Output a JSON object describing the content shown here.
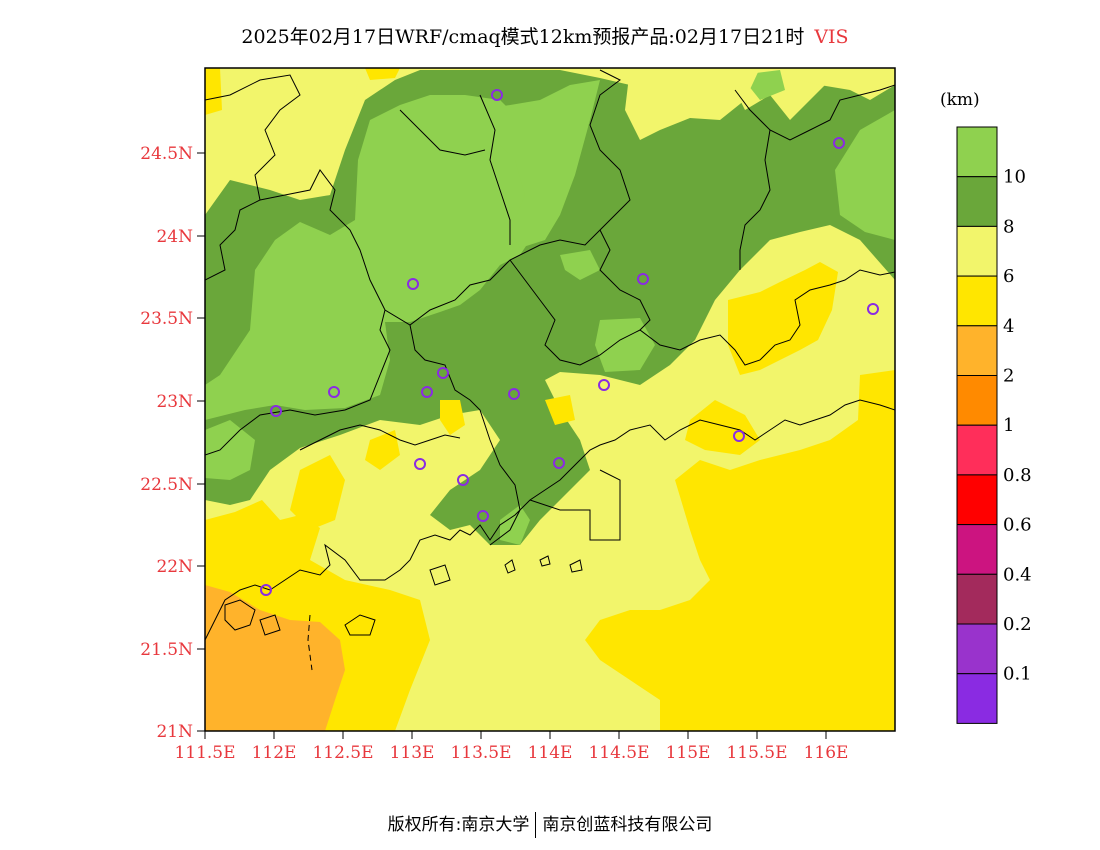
{
  "title": {
    "main": "2025年02月17日WRF/cmaq模式12km预报产品:02月17日21时",
    "variable": "VIS"
  },
  "map": {
    "lat_ticks": [
      "24.5N",
      "24N",
      "23.5N",
      "23N",
      "22.5N",
      "22N",
      "21.5N",
      "21N"
    ],
    "lon_ticks": [
      "111.5E",
      "112E",
      "112.5E",
      "113E",
      "113.5E",
      "114E",
      "114.5E",
      "115E",
      "115.5E",
      "116E"
    ],
    "tick_color": "#e8383d"
  },
  "legend": {
    "unit": "(km)",
    "labels": [
      "10",
      "8",
      "6",
      "4",
      "2",
      "1",
      "0.8",
      "0.6",
      "0.4",
      "0.2",
      "0.1"
    ],
    "colors": [
      "#8fd14f",
      "#6aa73a",
      "#f2f56b",
      "#ffe600",
      "#ffb32b",
      "#ff8a00",
      "#ff2e5a",
      "#ff0000",
      "#cc1480",
      "#a32a5c",
      "#9933cc",
      "#8a2be2"
    ]
  },
  "footer": {
    "left": "版权所有:南京大学",
    "right": "南京创蓝科技有限公司"
  }
}
